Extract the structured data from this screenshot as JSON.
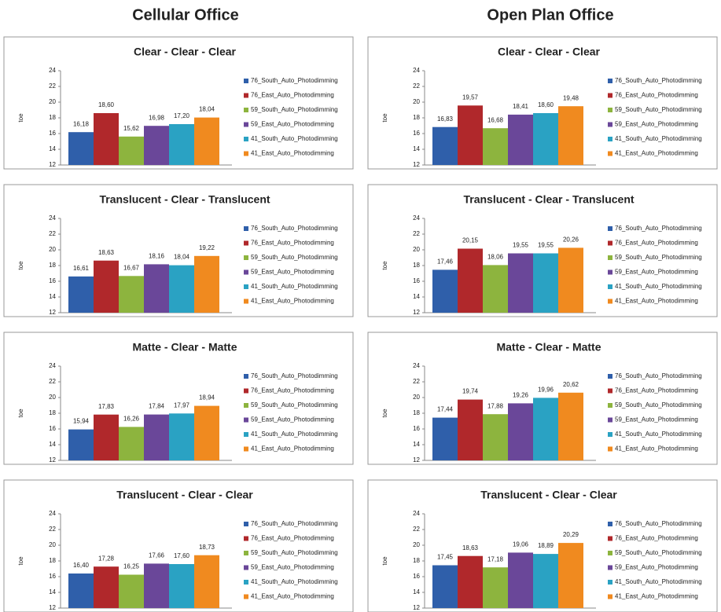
{
  "column_titles": [
    "Cellular Office",
    "Open Plan Office"
  ],
  "chart_data": [
    {
      "type": "bar",
      "title": "Clear - Clear - Clear",
      "y_label": "toe",
      "categories": [
        null
      ],
      "ylim": [
        12,
        24
      ],
      "yticks": [
        12,
        14,
        16,
        18,
        20,
        22,
        24
      ],
      "series": [
        {
          "name": "76_South_Auto_Photodimming",
          "color": "#2f5faa",
          "values": [
            16.18
          ],
          "value_labels": [
            "16,18"
          ]
        },
        {
          "name": "76_East_Auto_Photodimming",
          "color": "#b0282b",
          "values": [
            18.6
          ],
          "value_labels": [
            "18,60"
          ]
        },
        {
          "name": "59_South_Auto_Photodimming",
          "color": "#8db43e",
          "values": [
            15.62
          ],
          "value_labels": [
            "15,62"
          ]
        },
        {
          "name": "59_East_Auto_Photodimming",
          "color": "#6a4799",
          "values": [
            16.98
          ],
          "value_labels": [
            "16,98"
          ]
        },
        {
          "name": "41_South_Auto_Photodimming",
          "color": "#2aa2c3",
          "values": [
            17.2
          ],
          "value_labels": [
            "17,20"
          ]
        },
        {
          "name": "41_East_Auto_Photodimming",
          "color": "#f08a1f",
          "values": [
            18.04
          ],
          "value_labels": [
            "18,04"
          ]
        }
      ]
    },
    {
      "type": "bar",
      "title": "Translucent - Clear - Translucent",
      "y_label": "toe",
      "categories": [
        null
      ],
      "ylim": [
        12,
        24
      ],
      "yticks": [
        12,
        14,
        16,
        18,
        20,
        22,
        24
      ],
      "series": [
        {
          "name": "76_South_Auto_Photodimming",
          "color": "#2f5faa",
          "values": [
            16.61
          ],
          "value_labels": [
            "16,61"
          ]
        },
        {
          "name": "76_East_Auto_Photodimming",
          "color": "#b0282b",
          "values": [
            18.63
          ],
          "value_labels": [
            "18,63"
          ]
        },
        {
          "name": "59_South_Auto_Photodimming",
          "color": "#8db43e",
          "values": [
            16.67
          ],
          "value_labels": [
            "16,67"
          ]
        },
        {
          "name": "59_East_Auto_Photodimming",
          "color": "#6a4799",
          "values": [
            18.16
          ],
          "value_labels": [
            "18,16"
          ]
        },
        {
          "name": "41_South_Auto_Photodimming",
          "color": "#2aa2c3",
          "values": [
            18.04
          ],
          "value_labels": [
            "18,04"
          ]
        },
        {
          "name": "41_East_Auto_Photodimming",
          "color": "#f08a1f",
          "values": [
            19.22
          ],
          "value_labels": [
            "19,22"
          ]
        }
      ]
    },
    {
      "type": "bar",
      "title": "Matte - Clear - Matte",
      "y_label": "toe",
      "categories": [
        null
      ],
      "ylim": [
        12,
        24
      ],
      "yticks": [
        12,
        14,
        16,
        18,
        20,
        22,
        24
      ],
      "series": [
        {
          "name": "76_South_Auto_Photodimming",
          "color": "#2f5faa",
          "values": [
            15.94
          ],
          "value_labels": [
            "15,94"
          ]
        },
        {
          "name": "76_East_Auto_Photodimming",
          "color": "#b0282b",
          "values": [
            17.83
          ],
          "value_labels": [
            "17,83"
          ]
        },
        {
          "name": "59_South_Auto_Photodimming",
          "color": "#8db43e",
          "values": [
            16.26
          ],
          "value_labels": [
            "16,26"
          ]
        },
        {
          "name": "59_East_Auto_Photodimming",
          "color": "#6a4799",
          "values": [
            17.84
          ],
          "value_labels": [
            "17,84"
          ]
        },
        {
          "name": "41_South_Auto_Photodimming",
          "color": "#2aa2c3",
          "values": [
            17.97
          ],
          "value_labels": [
            "17,97"
          ]
        },
        {
          "name": "41_East_Auto_Photodimming",
          "color": "#f08a1f",
          "values": [
            18.94
          ],
          "value_labels": [
            "18,94"
          ]
        }
      ]
    },
    {
      "type": "bar",
      "title": "Translucent - Clear - Clear",
      "y_label": "toe",
      "categories": [
        null
      ],
      "ylim": [
        12,
        24
      ],
      "yticks": [
        12,
        14,
        16,
        18,
        20,
        22,
        24
      ],
      "series": [
        {
          "name": "76_South_Auto_Photodimming",
          "color": "#2f5faa",
          "values": [
            16.4
          ],
          "value_labels": [
            "16,40"
          ]
        },
        {
          "name": "76_East_Auto_Photodimming",
          "color": "#b0282b",
          "values": [
            17.28
          ],
          "value_labels": [
            "17,28"
          ]
        },
        {
          "name": "59_South_Auto_Photodimming",
          "color": "#8db43e",
          "values": [
            16.25
          ],
          "value_labels": [
            "16,25"
          ]
        },
        {
          "name": "59_East_Auto_Photodimming",
          "color": "#6a4799",
          "values": [
            17.66
          ],
          "value_labels": [
            "17,66"
          ]
        },
        {
          "name": "41_South_Auto_Photodimming",
          "color": "#2aa2c3",
          "values": [
            17.6
          ],
          "value_labels": [
            "17,60"
          ]
        },
        {
          "name": "41_East_Auto_Photodimming",
          "color": "#f08a1f",
          "values": [
            18.73
          ],
          "value_labels": [
            "18,73"
          ]
        }
      ]
    },
    {
      "type": "bar",
      "title": "Clear - Clear - Clear",
      "y_label": "toe",
      "categories": [
        null
      ],
      "ylim": [
        12,
        24
      ],
      "yticks": [
        12,
        14,
        16,
        18,
        20,
        22,
        24
      ],
      "series": [
        {
          "name": "76_South_Auto_Photodimming",
          "color": "#2f5faa",
          "values": [
            16.83
          ],
          "value_labels": [
            "16,83"
          ]
        },
        {
          "name": "76_East_Auto_Photodimming",
          "color": "#b0282b",
          "values": [
            19.57
          ],
          "value_labels": [
            "19,57"
          ]
        },
        {
          "name": "59_South_Auto_Photodimming",
          "color": "#8db43e",
          "values": [
            16.68
          ],
          "value_labels": [
            "16,68"
          ]
        },
        {
          "name": "59_East_Auto_Photodimming",
          "color": "#6a4799",
          "values": [
            18.41
          ],
          "value_labels": [
            "18,41"
          ]
        },
        {
          "name": "41_South_Auto_Photodimming",
          "color": "#2aa2c3",
          "values": [
            18.6
          ],
          "value_labels": [
            "18,60"
          ]
        },
        {
          "name": "41_East_Auto_Photodimming",
          "color": "#f08a1f",
          "values": [
            19.48
          ],
          "value_labels": [
            "19,48"
          ]
        }
      ]
    },
    {
      "type": "bar",
      "title": "Translucent - Clear - Translucent",
      "y_label": "toe",
      "categories": [
        null
      ],
      "ylim": [
        12,
        24
      ],
      "yticks": [
        12,
        14,
        16,
        18,
        20,
        22,
        24
      ],
      "series": [
        {
          "name": "76_South_Auto_Photodimming",
          "color": "#2f5faa",
          "values": [
            17.46
          ],
          "value_labels": [
            "17,46"
          ]
        },
        {
          "name": "76_East_Auto_Photodimming",
          "color": "#b0282b",
          "values": [
            20.15
          ],
          "value_labels": [
            "20,15"
          ]
        },
        {
          "name": "59_South_Auto_Photodimming",
          "color": "#8db43e",
          "values": [
            18.06
          ],
          "value_labels": [
            "18,06"
          ]
        },
        {
          "name": "59_East_Auto_Photodimming",
          "color": "#6a4799",
          "values": [
            19.55
          ],
          "value_labels": [
            "19,55"
          ]
        },
        {
          "name": "41_South_Auto_Photodimming",
          "color": "#2aa2c3",
          "values": [
            19.55
          ],
          "value_labels": [
            "19,55"
          ]
        },
        {
          "name": "41_East_Auto_Photodimming",
          "color": "#f08a1f",
          "values": [
            20.26
          ],
          "value_labels": [
            "20,26"
          ]
        }
      ]
    },
    {
      "type": "bar",
      "title": "Matte - Clear - Matte",
      "y_label": "toe",
      "categories": [
        null
      ],
      "ylim": [
        12,
        24
      ],
      "yticks": [
        12,
        14,
        16,
        18,
        20,
        22,
        24
      ],
      "series": [
        {
          "name": "76_South_Auto_Photodimming",
          "color": "#2f5faa",
          "values": [
            17.44
          ],
          "value_labels": [
            "17,44"
          ]
        },
        {
          "name": "76_East_Auto_Photodimming",
          "color": "#b0282b",
          "values": [
            19.74
          ],
          "value_labels": [
            "19,74"
          ]
        },
        {
          "name": "59_South_Auto_Photodimming",
          "color": "#8db43e",
          "values": [
            17.88
          ],
          "value_labels": [
            "17,88"
          ]
        },
        {
          "name": "59_East_Auto_Photodimming",
          "color": "#6a4799",
          "values": [
            19.26
          ],
          "value_labels": [
            "19,26"
          ]
        },
        {
          "name": "41_South_Auto_Photodimming",
          "color": "#2aa2c3",
          "values": [
            19.96
          ],
          "value_labels": [
            "19,96"
          ]
        },
        {
          "name": "41_East_Auto_Photodimming",
          "color": "#f08a1f",
          "values": [
            20.62
          ],
          "value_labels": [
            "20,62"
          ]
        }
      ]
    },
    {
      "type": "bar",
      "title": "Translucent - Clear - Clear",
      "y_label": "toe",
      "categories": [
        null
      ],
      "ylim": [
        12,
        24
      ],
      "yticks": [
        12,
        14,
        16,
        18,
        20,
        22,
        24
      ],
      "series": [
        {
          "name": "76_South_Auto_Photodimming",
          "color": "#2f5faa",
          "values": [
            17.45
          ],
          "value_labels": [
            "17,45"
          ]
        },
        {
          "name": "76_East_Auto_Photodimming",
          "color": "#b0282b",
          "values": [
            18.63
          ],
          "value_labels": [
            "18,63"
          ]
        },
        {
          "name": "59_South_Auto_Photodimming",
          "color": "#8db43e",
          "values": [
            17.18
          ],
          "value_labels": [
            "17,18"
          ]
        },
        {
          "name": "59_East_Auto_Photodimming",
          "color": "#6a4799",
          "values": [
            19.06
          ],
          "value_labels": [
            "19,06"
          ]
        },
        {
          "name": "41_South_Auto_Photodimming",
          "color": "#2aa2c3",
          "values": [
            18.89
          ],
          "value_labels": [
            "18,89"
          ]
        },
        {
          "name": "41_East_Auto_Photodimming",
          "color": "#f08a1f",
          "values": [
            20.29
          ],
          "value_labels": [
            "20,29"
          ]
        }
      ]
    }
  ]
}
